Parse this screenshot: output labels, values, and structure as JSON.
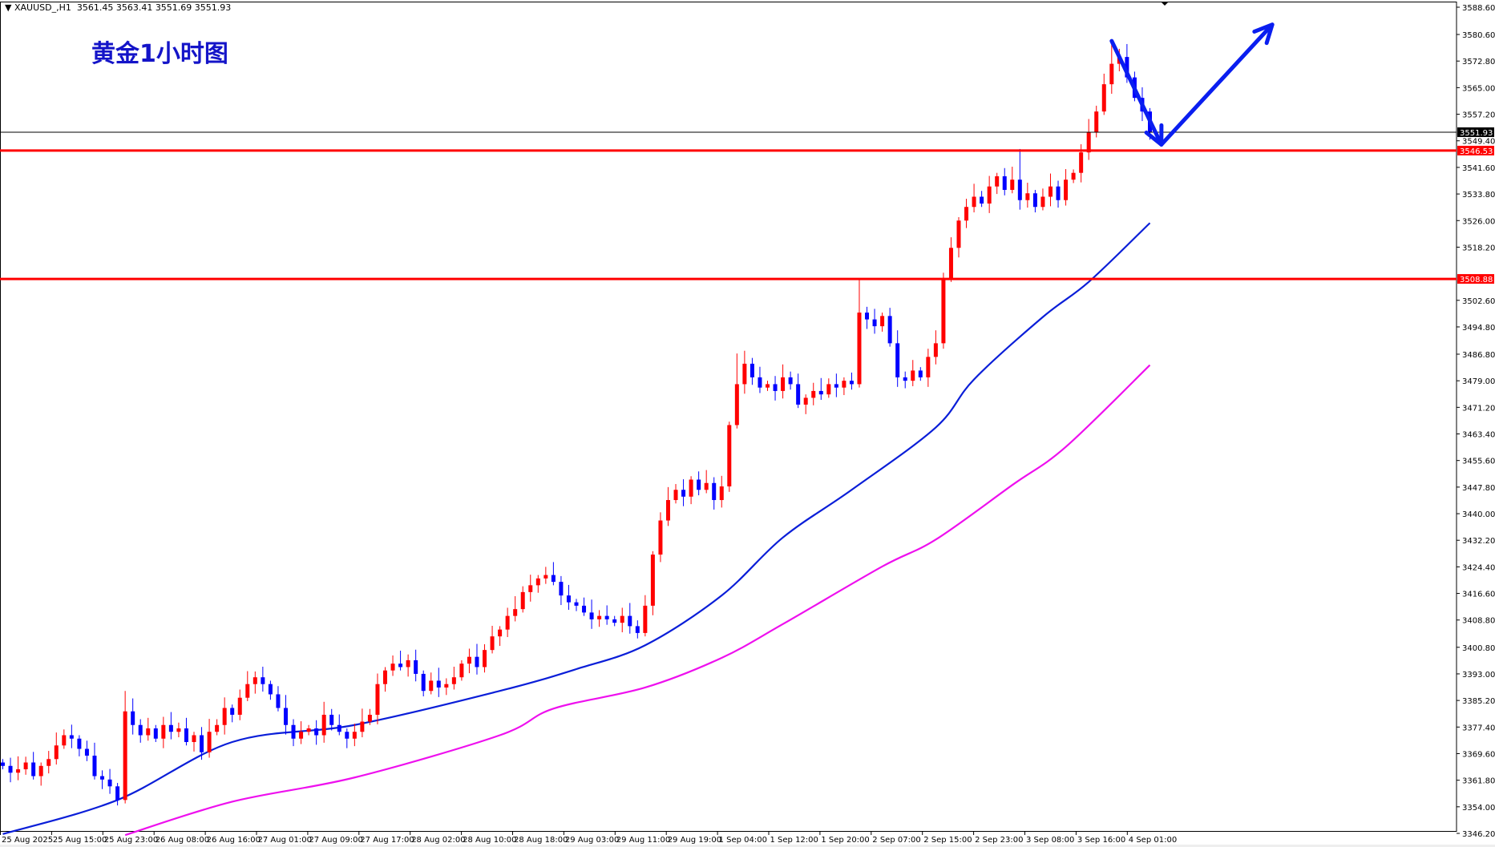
{
  "header": {
    "symbol_label": "▼ XAUUSD_,H1",
    "ohlc_readout": "3561.45 3563.41 3551.69 3551.93"
  },
  "title": "黄金1小时图",
  "colors": {
    "bull": "#ff0000",
    "bear": "#0000ff",
    "ma_fast": "#0a1ed8",
    "ma_slow": "#ee10ee",
    "level": "#ff0000",
    "bid_line": "#000000",
    "arrow": "#0a1ef0"
  },
  "chart_data": {
    "type": "candlestick",
    "symbol": "XAUUSD_",
    "timeframe": "H1",
    "ylim": [
      3346.2,
      3588.6
    ],
    "y_ticks": [
      3588.6,
      3580.6,
      3572.8,
      3565.0,
      3557.2,
      3549.4,
      3541.6,
      3533.8,
      3526.0,
      3518.2,
      3502.6,
      3494.8,
      3486.8,
      3479.0,
      3471.2,
      3463.4,
      3455.6,
      3447.8,
      3440.0,
      3432.2,
      3424.4,
      3416.6,
      3408.8,
      3400.8,
      3393.0,
      3385.2,
      3377.4,
      3369.6,
      3361.8,
      3354.0,
      3346.2
    ],
    "x_labels": [
      "25 Aug 2025",
      "25 Aug 15:00",
      "25 Aug 23:00",
      "26 Aug 08:00",
      "26 Aug 16:00",
      "27 Aug 01:00",
      "27 Aug 09:00",
      "27 Aug 17:00",
      "28 Aug 02:00",
      "28 Aug 10:00",
      "28 Aug 18:00",
      "29 Aug 03:00",
      "29 Aug 11:00",
      "29 Aug 19:00",
      "1 Sep 04:00",
      "1 Sep 12:00",
      "1 Sep 20:00",
      "2 Sep 07:00",
      "2 Sep 15:00",
      "2 Sep 23:00",
      "3 Sep 08:00",
      "3 Sep 16:00",
      "4 Sep 01:00"
    ],
    "close": [
      3366,
      3364,
      3365,
      3367,
      3363,
      3366,
      3368,
      3372,
      3375,
      3374,
      3371,
      3369,
      3363,
      3362,
      3360,
      3356,
      3382,
      3378,
      3375,
      3377,
      3374,
      3378,
      3376,
      3377,
      3373,
      3375,
      3370,
      3376,
      3378,
      3383,
      3381,
      3386,
      3390,
      3392,
      3390,
      3387,
      3383,
      3378,
      3374,
      3376,
      3377,
      3375,
      3381,
      3378,
      3376,
      3374,
      3376,
      3379,
      3381,
      3390,
      3394,
      3396,
      3395,
      3397,
      3393,
      3388,
      3391,
      3389,
      3390,
      3392,
      3396,
      3398,
      3395,
      3400,
      3404,
      3406,
      3410,
      3412,
      3417,
      3419,
      3421,
      3422,
      3420,
      3416,
      3414,
      3413,
      3411,
      3409,
      3410,
      3409,
      3408,
      3410,
      3407,
      3405,
      3413,
      3428,
      3438,
      3444,
      3447,
      3445,
      3450,
      3447,
      3449,
      3444,
      3448,
      3466,
      3478,
      3484,
      3480,
      3477,
      3478,
      3476,
      3480,
      3478,
      3472,
      3474,
      3476,
      3475,
      3478,
      3477,
      3479,
      3478,
      3499,
      3497,
      3495,
      3498,
      3490,
      3480,
      3479,
      3482,
      3480,
      3486,
      3490,
      3509,
      3518,
      3526,
      3530,
      3533,
      3531,
      3536,
      3539,
      3535,
      3538,
      3532,
      3534,
      3530,
      3533,
      3536,
      3532,
      3538,
      3540,
      3546,
      3552,
      3558,
      3566,
      3572,
      3574,
      3568,
      3562,
      3558,
      3551.93
    ],
    "first_open": 3367,
    "notable_highs": {
      "16": 3388,
      "96": 3487,
      "112": 3509,
      "133": 3547,
      "145": 3578
    },
    "ma_fast": [
      [
        0,
        3346
      ],
      [
        15,
        3356
      ],
      [
        30,
        3373
      ],
      [
        46,
        3378
      ],
      [
        65,
        3388
      ],
      [
        75,
        3394.4
      ],
      [
        84,
        3401.4
      ],
      [
        94,
        3416
      ],
      [
        102,
        3433
      ],
      [
        111,
        3447
      ],
      [
        122,
        3465.3
      ],
      [
        127,
        3479.4
      ],
      [
        136,
        3497.7
      ],
      [
        142,
        3508
      ],
      [
        150,
        3525.3
      ]
    ],
    "ma_slow": [
      [
        16,
        3345.7
      ],
      [
        30,
        3355.5
      ],
      [
        46,
        3362.6
      ],
      [
        65,
        3375
      ],
      [
        72,
        3382.8
      ],
      [
        84,
        3389
      ],
      [
        94,
        3397.7
      ],
      [
        102,
        3407.6
      ],
      [
        115,
        3424.5
      ],
      [
        122,
        3432.4
      ],
      [
        132,
        3448.4
      ],
      [
        139,
        3459.6
      ],
      [
        150,
        3483.6
      ]
    ],
    "levels": [
      {
        "price": 3546.53,
        "label": "3546.53"
      },
      {
        "price": 3508.88,
        "label": "3508.88"
      }
    ],
    "bid": {
      "price": 3551.93,
      "label": "3551.93"
    },
    "arrows": [
      {
        "from": [
          145,
          3578.7
        ],
        "to": [
          151.5,
          3548.3
        ]
      },
      {
        "from": [
          151.5,
          3548.3
        ],
        "to": [
          166,
          3583.5
        ]
      }
    ]
  }
}
